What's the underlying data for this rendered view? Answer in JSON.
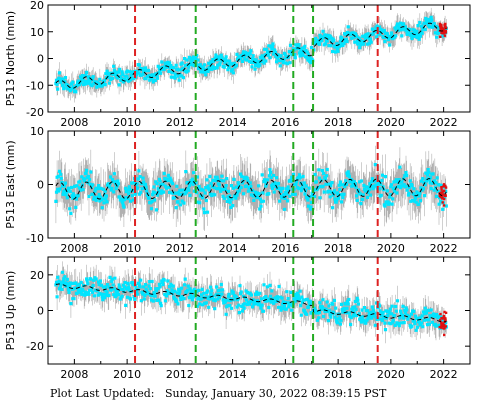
{
  "footer": {
    "label": "Plot Last Updated:",
    "timestamp": "Sunday, January 30, 2022 08:39:15 PST"
  },
  "colors": {
    "data": "#00e5ff",
    "error_bars": "#b0b0b0",
    "model": "#000000",
    "recent": "#e01010",
    "equipment_change": "#22aa22",
    "earthquake": "#dd2222"
  },
  "chart_data": [
    {
      "type": "scatter",
      "ylabel": "P513 North (mm)",
      "xlim": [
        2007.0,
        2023.0
      ],
      "ylim": [
        -20,
        20
      ],
      "yticks": [
        -20,
        -10,
        0,
        10,
        20
      ],
      "xticks": [
        2008,
        2010,
        2012,
        2014,
        2016,
        2018,
        2020,
        2022
      ],
      "trend": {
        "start": -10.2,
        "rate": 1.35,
        "seasonal_amplitude": 1.8
      },
      "offsets": [
        {
          "x": 2017.05,
          "dy": 2.5
        }
      ],
      "series_range": [
        2007.3,
        2022.1
      ],
      "noise": 2.0,
      "error_bar": 3.0
    },
    {
      "type": "scatter",
      "ylabel": "P513 East (mm)",
      "xlim": [
        2007.0,
        2023.0
      ],
      "ylim": [
        -10,
        10
      ],
      "yticks": [
        -10,
        0,
        10
      ],
      "xticks": [
        2008,
        2010,
        2012,
        2014,
        2016,
        2018,
        2020,
        2022
      ],
      "trend": {
        "start": -1.2,
        "rate": 0.05,
        "seasonal_amplitude": 1.6
      },
      "offsets": [],
      "series_range": [
        2007.3,
        2022.1
      ],
      "noise": 1.8,
      "error_bar": 3.0
    },
    {
      "type": "scatter",
      "ylabel": "P513 Up (mm)",
      "xlim": [
        2007.0,
        2023.0
      ],
      "ylim": [
        -30,
        30
      ],
      "yticks": [
        -20,
        0,
        20
      ],
      "xticks": [
        2008,
        2010,
        2012,
        2014,
        2016,
        2018,
        2020,
        2022
      ],
      "trend": {
        "start": 14.0,
        "rate": -1.05,
        "seasonal_amplitude": 1.0
      },
      "offsets": [
        {
          "x": 2017.05,
          "dy": -4.0
        }
      ],
      "series_range": [
        2007.3,
        2022.1
      ],
      "noise": 4.5,
      "error_bar": 6.0
    }
  ],
  "events": {
    "equipment_change": [
      2012.6,
      2016.3,
      2017.05
    ],
    "earthquake": [
      2010.3,
      2019.5
    ]
  }
}
